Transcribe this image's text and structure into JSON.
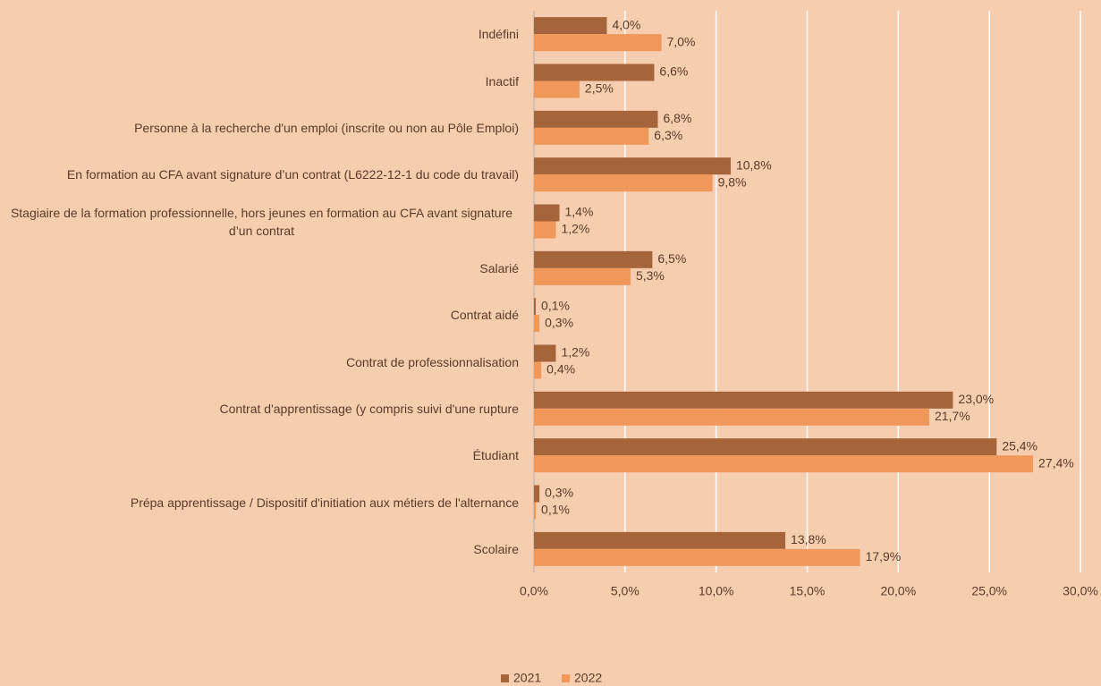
{
  "chart_data": {
    "type": "hbar",
    "categories": [
      "Indéfini",
      "Inactif",
      "Personne à  la recherche d'un emploi (inscrite ou non au Pôle Emploi)",
      "En formation au CFA avant signature d’un contrat (L6222-12-1 du code du travail)",
      "Stagiaire de la formation professionnelle, hors jeunes en formation au CFA avant signature d’un contrat",
      "Salarié",
      "Contrat aidé",
      "Contrat de professionnalisation",
      "Contrat d'apprentissage (y compris suivi d'une rupture",
      "Étudiant",
      "Prépa apprentissage / Dispositif d'initiation aux métiers de l'alternance",
      "Scolaire"
    ],
    "series": [
      {
        "name": "2021",
        "color": "#a5643a",
        "values": [
          4.0,
          6.6,
          6.8,
          10.8,
          1.4,
          6.5,
          0.1,
          1.2,
          23.0,
          25.4,
          0.3,
          13.8
        ],
        "value_labels": [
          "4,0%",
          "6,6%",
          "6,8%",
          "10,8%",
          "1,4%",
          "6,5%",
          "0,1%",
          "1,2%",
          "23,0%",
          "25,4%",
          "0,3%",
          "13,8%"
        ]
      },
      {
        "name": "2022",
        "color": "#f0975a",
        "values": [
          7.0,
          2.5,
          6.3,
          9.8,
          1.2,
          5.3,
          0.3,
          0.4,
          21.7,
          27.4,
          0.1,
          17.9
        ],
        "value_labels": [
          "7,0%",
          "2,5%",
          "6,3%",
          "9,8%",
          "1,2%",
          "5,3%",
          "0,3%",
          "0,4%",
          "21,7%",
          "27,4%",
          "0,1%",
          "17,9%"
        ]
      }
    ],
    "xlim": [
      0,
      30
    ],
    "xticks": [
      {
        "value": 0,
        "label": "0,0%"
      },
      {
        "value": 5,
        "label": "5,0%"
      },
      {
        "value": 10,
        "label": "10,0%"
      },
      {
        "value": 15,
        "label": "15,0%"
      },
      {
        "value": 20,
        "label": "20,0%"
      },
      {
        "value": 25,
        "label": "25,0%"
      },
      {
        "value": 30,
        "label": "30,0%"
      }
    ],
    "grid": true,
    "legend": "bottom"
  }
}
